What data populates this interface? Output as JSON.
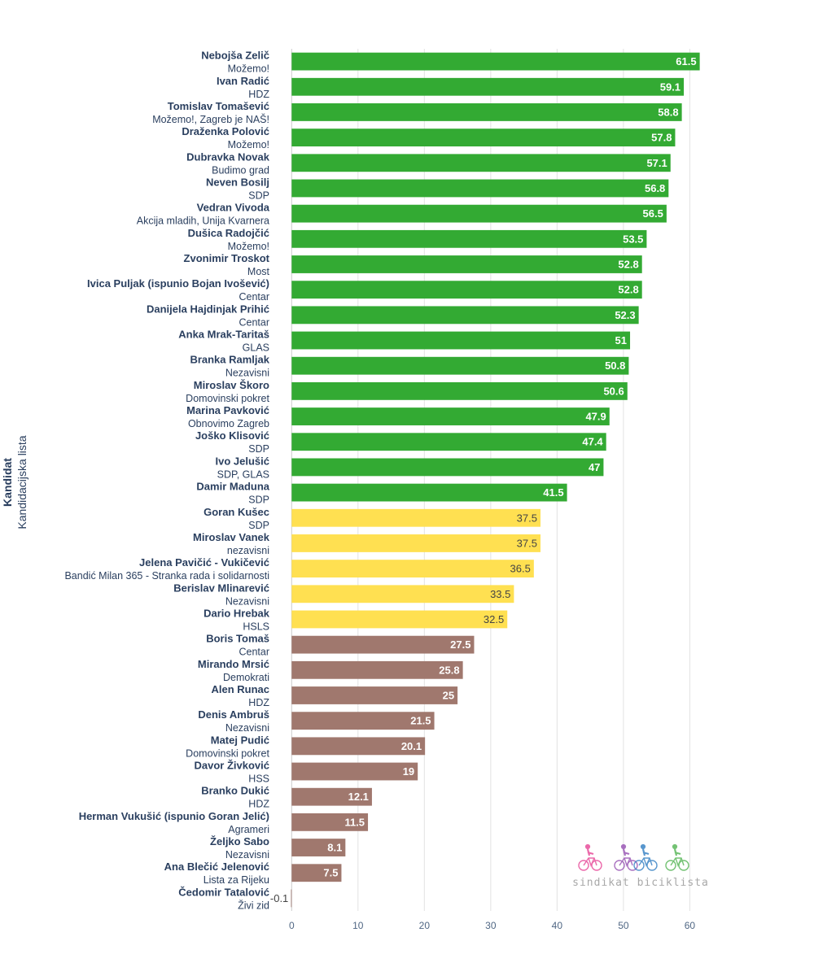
{
  "chart_data": {
    "type": "bar",
    "orientation": "horizontal",
    "ylabel": "Kandidat",
    "ylabel_sub": "Kandidacijska lista",
    "xlim": [
      -2,
      64
    ],
    "xticks": [
      0,
      10,
      20,
      30,
      40,
      50,
      60
    ],
    "grid": true,
    "colors": {
      "high": "#33aa33",
      "mid": "#ffe051",
      "low": "#a0786e"
    },
    "bars": [
      {
        "candidate": "Nebojša Zelič",
        "list": "Možemo!",
        "value": 61.5,
        "label": "61.5",
        "group": "high"
      },
      {
        "candidate": "Ivan Radić",
        "list": "HDZ",
        "value": 59.1,
        "label": "59.1",
        "group": "high"
      },
      {
        "candidate": "Tomislav Tomašević",
        "list": "Možemo!, Zagreb je NAŠ!",
        "value": 58.8,
        "label": "58.8",
        "group": "high"
      },
      {
        "candidate": "Draženka Polović",
        "list": "Možemo!",
        "value": 57.8,
        "label": "57.8",
        "group": "high"
      },
      {
        "candidate": "Dubravka Novak",
        "list": "Budimo grad",
        "value": 57.1,
        "label": "57.1",
        "group": "high"
      },
      {
        "candidate": "Neven Bosilj",
        "list": "SDP",
        "value": 56.8,
        "label": "56.8",
        "group": "high"
      },
      {
        "candidate": "Vedran Vivoda",
        "list": "Akcija mladih, Unija Kvarnera",
        "value": 56.5,
        "label": "56.5",
        "group": "high"
      },
      {
        "candidate": "Dušica Radojčić",
        "list": "Možemo!",
        "value": 53.5,
        "label": "53.5",
        "group": "high"
      },
      {
        "candidate": "Zvonimir Troskot",
        "list": "Most",
        "value": 52.8,
        "label": "52.8",
        "group": "high"
      },
      {
        "candidate": "Ivica Puljak (ispunio Bojan Ivošević)",
        "list": "Centar",
        "value": 52.8,
        "label": "52.8",
        "group": "high"
      },
      {
        "candidate": "Danijela Hajdinjak Prihić",
        "list": "Centar",
        "value": 52.3,
        "label": "52.3",
        "group": "high"
      },
      {
        "candidate": "Anka Mrak-Taritaš",
        "list": "GLAS",
        "value": 51,
        "label": "51",
        "group": "high"
      },
      {
        "candidate": "Branka Ramljak",
        "list": "Nezavisni",
        "value": 50.8,
        "label": "50.8",
        "group": "high"
      },
      {
        "candidate": "Miroslav Škoro",
        "list": "Domovinski pokret",
        "value": 50.6,
        "label": "50.6",
        "group": "high"
      },
      {
        "candidate": "Marina Pavković",
        "list": "Obnovimo Zagreb",
        "value": 47.9,
        "label": "47.9",
        "group": "high"
      },
      {
        "candidate": "Joško Klisović",
        "list": "SDP",
        "value": 47.4,
        "label": "47.4",
        "group": "high"
      },
      {
        "candidate": "Ivo Jelušić",
        "list": "SDP, GLAS",
        "value": 47,
        "label": "47",
        "group": "high"
      },
      {
        "candidate": "Damir Maduna",
        "list": "SDP",
        "value": 41.5,
        "label": "41.5",
        "group": "high"
      },
      {
        "candidate": "Goran Kušec",
        "list": "SDP",
        "value": 37.5,
        "label": "37.5",
        "group": "mid"
      },
      {
        "candidate": "Miroslav Vanek",
        "list": "nezavisni",
        "value": 37.5,
        "label": "37.5",
        "group": "mid"
      },
      {
        "candidate": "Jelena Pavičić - Vukičević",
        "list": "Bandić Milan 365 - Stranka rada i solidarnosti",
        "value": 36.5,
        "label": "36.5",
        "group": "mid"
      },
      {
        "candidate": "Berislav Mlinarević",
        "list": "Nezavisni",
        "value": 33.5,
        "label": "33.5",
        "group": "mid"
      },
      {
        "candidate": "Dario Hrebak",
        "list": "HSLS",
        "value": 32.5,
        "label": "32.5",
        "group": "mid"
      },
      {
        "candidate": "Boris Tomaš",
        "list": "Centar",
        "value": 27.5,
        "label": "27.5",
        "group": "low"
      },
      {
        "candidate": "Mirando Mrsić",
        "list": "Demokrati",
        "value": 25.8,
        "label": "25.8",
        "group": "low"
      },
      {
        "candidate": "Alen Runac",
        "list": "HDZ",
        "value": 25,
        "label": "25",
        "group": "low"
      },
      {
        "candidate": "Denis Ambruš",
        "list": "Nezavisni",
        "value": 21.5,
        "label": "21.5",
        "group": "low"
      },
      {
        "candidate": "Matej Pudić",
        "list": "Domovinski pokret",
        "value": 20.1,
        "label": "20.1",
        "group": "low"
      },
      {
        "candidate": "Davor Živković",
        "list": "HSS",
        "value": 19,
        "label": "19",
        "group": "low"
      },
      {
        "candidate": "Branko Dukić",
        "list": "HDZ",
        "value": 12.1,
        "label": "12.1",
        "group": "low"
      },
      {
        "candidate": "Herman Vukušić (ispunio Goran Jelić)",
        "list": "Agrameri",
        "value": 11.5,
        "label": "11.5",
        "group": "low"
      },
      {
        "candidate": "Željko Sabo",
        "list": "Nezavisni",
        "value": 8.1,
        "label": "8.1",
        "group": "low"
      },
      {
        "candidate": "Ana Blečić Jelenović",
        "list": "Lista za Rijeku",
        "value": 7.5,
        "label": "7.5",
        "group": "low"
      },
      {
        "candidate": "Čedomir Tatalović",
        "list": "Živi zid",
        "value": -0.1,
        "label": "-0.1",
        "group": "low"
      }
    ]
  },
  "watermark": {
    "text": "sindikat biciklista",
    "icon_colors": [
      "#e84f9c",
      "#9b59b6",
      "#3d85c6",
      "#5cb85c"
    ]
  }
}
